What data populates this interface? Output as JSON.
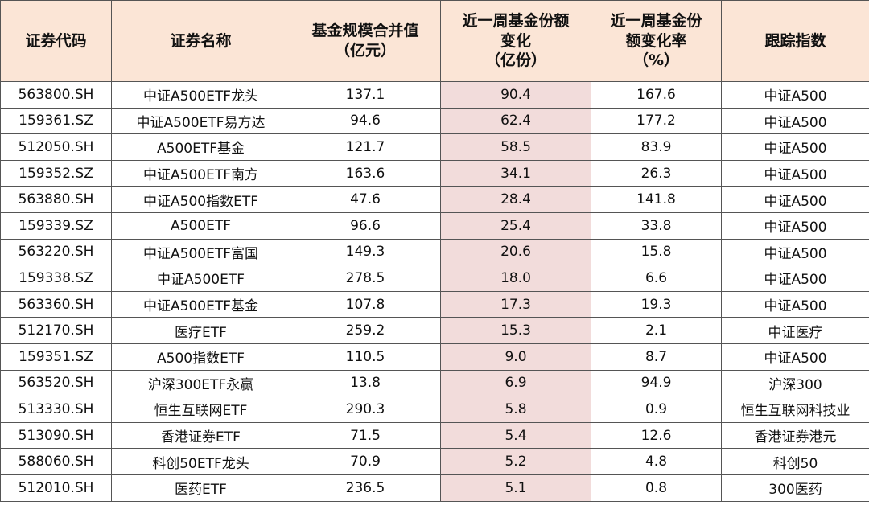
{
  "table": {
    "header": [
      "证券代码",
      "证券名称",
      "基金规模合并值\n（亿元）",
      "近一周基金份额\n变化\n（亿份）",
      "近一周基金份\n额变化率\n（%）",
      "跟踪指数"
    ],
    "rows": [
      [
        "563800.SH",
        "中证A500ETF龙头",
        "137.1",
        "90.4",
        "167.6",
        "中证A500"
      ],
      [
        "159361.SZ",
        "中证A500ETF易方达",
        "94.6",
        "62.4",
        "177.2",
        "中证A500"
      ],
      [
        "512050.SH",
        "A500ETF基金",
        "121.7",
        "58.5",
        "83.9",
        "中证A500"
      ],
      [
        "159352.SZ",
        "中证A500ETF南方",
        "163.6",
        "34.1",
        "26.3",
        "中证A500"
      ],
      [
        "563880.SH",
        "中证A500指数ETF",
        "47.6",
        "28.4",
        "141.8",
        "中证A500"
      ],
      [
        "159339.SZ",
        "A500ETF",
        "96.6",
        "25.4",
        "33.8",
        "中证A500"
      ],
      [
        "563220.SH",
        "中证A500ETF富国",
        "149.3",
        "20.6",
        "15.8",
        "中证A500"
      ],
      [
        "159338.SZ",
        "中证A500ETF",
        "278.5",
        "18.0",
        "6.6",
        "中证A500"
      ],
      [
        "563360.SH",
        "中证A500ETF基金",
        "107.8",
        "17.3",
        "19.3",
        "中证A500"
      ],
      [
        "512170.SH",
        "医疗ETF",
        "259.2",
        "15.3",
        "2.1",
        "中证医疗"
      ],
      [
        "159351.SZ",
        "A500指数ETF",
        "110.5",
        "9.0",
        "8.7",
        "中证A500"
      ],
      [
        "563520.SH",
        "沪深300ETF永赢",
        "13.8",
        "6.9",
        "94.9",
        "沪深300"
      ],
      [
        "513330.SH",
        "恒生互联网ETF",
        "290.3",
        "5.8",
        "0.9",
        "恒生互联网科技业"
      ],
      [
        "513090.SH",
        "香港证券ETF",
        "71.5",
        "5.4",
        "12.6",
        "香港证券港元"
      ],
      [
        "588060.SH",
        "科创50ETF龙头",
        "70.9",
        "5.2",
        "4.8",
        "科创50"
      ],
      [
        "512010.SH",
        "医药ETF",
        "236.5",
        "5.1",
        "0.8",
        "300医药"
      ]
    ]
  }
}
